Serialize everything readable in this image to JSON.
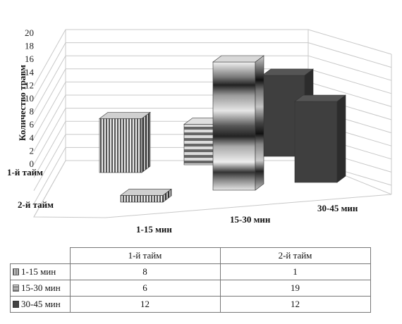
{
  "chart_data": {
    "type": "bar",
    "subtype": "3d-column",
    "ylabel": "Количество травм",
    "ylim": [
      0,
      20
    ],
    "yticks": [
      0,
      2,
      4,
      6,
      8,
      10,
      12,
      14,
      16,
      18,
      20
    ],
    "grid": true,
    "x_categories": [
      "1-15 мин",
      "15-30 мин",
      "30-45 мин"
    ],
    "depth_categories": [
      "1-й тайм",
      "2-й тайм"
    ],
    "series": [
      {
        "name": "1-15 мин",
        "values": [
          8,
          1
        ],
        "color": "#888888"
      },
      {
        "name": "15-30 мин",
        "values": [
          6,
          19
        ],
        "color": "#aaaaaa"
      },
      {
        "name": "30-45 мин",
        "values": [
          12,
          12
        ],
        "color": "#444444"
      }
    ]
  },
  "table": {
    "headers": [
      "1-й тайм",
      "2-й тайм"
    ],
    "rows": [
      {
        "label": "1-15 мин",
        "values": [
          "8",
          "1"
        ]
      },
      {
        "label": "15-30 мин",
        "values": [
          "6",
          "19"
        ]
      },
      {
        "label": "30-45 мин",
        "values": [
          "12",
          "12"
        ]
      }
    ]
  }
}
